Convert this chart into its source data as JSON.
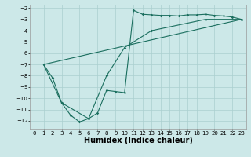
{
  "xlabel": "Humidex (Indice chaleur)",
  "background_color": "#cce8e8",
  "grid_color": "#aacfcf",
  "line_color": "#1a6e5e",
  "xlim": [
    -0.5,
    23.5
  ],
  "ylim": [
    -12.7,
    -1.7
  ],
  "xticks": [
    0,
    1,
    2,
    3,
    4,
    5,
    6,
    7,
    8,
    9,
    10,
    11,
    12,
    13,
    14,
    15,
    16,
    17,
    18,
    19,
    20,
    21,
    22,
    23
  ],
  "yticks": [
    -12,
    -11,
    -10,
    -9,
    -8,
    -7,
    -6,
    -5,
    -4,
    -3,
    -2
  ],
  "line1_x": [
    1,
    2,
    3,
    4,
    5,
    6,
    7,
    8,
    9,
    10,
    11,
    12,
    13,
    14,
    15,
    16,
    17,
    18,
    19,
    20,
    21,
    22,
    23
  ],
  "line1_y": [
    -7.0,
    -8.2,
    -10.4,
    -11.5,
    -12.1,
    -11.8,
    -11.3,
    -9.3,
    -9.4,
    -9.5,
    -2.2,
    -2.55,
    -2.6,
    -2.65,
    -2.65,
    -2.7,
    -2.6,
    -2.6,
    -2.55,
    -2.65,
    -2.7,
    -2.8,
    -3.0
  ],
  "line2_x": [
    1,
    3,
    6,
    8,
    10,
    13,
    19,
    23
  ],
  "line2_y": [
    -7.0,
    -10.4,
    -11.8,
    -8.0,
    -5.5,
    -4.0,
    -3.0,
    -3.0
  ],
  "line3_x": [
    1,
    3,
    6,
    8,
    10,
    13,
    19,
    23
  ],
  "line3_y": [
    -7.0,
    -10.4,
    -11.8,
    -8.0,
    -5.5,
    -4.0,
    -3.0,
    -3.0
  ],
  "marker": "D",
  "markersize": 1.8,
  "linewidth": 0.8,
  "xlabel_fontsize": 7,
  "tick_fontsize": 5
}
